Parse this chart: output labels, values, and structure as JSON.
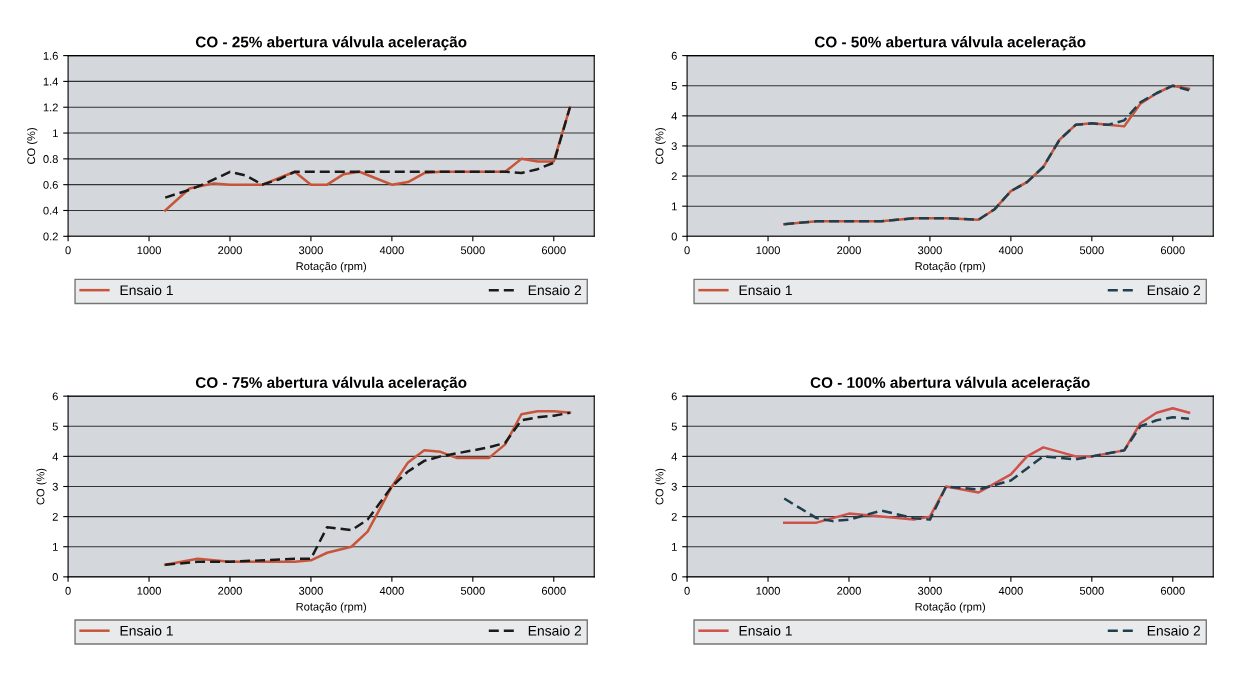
{
  "chart_data": [
    {
      "type": "line",
      "title": "CO - 25% abertura válvula aceleração",
      "xlabel": "Rotação (rpm)",
      "ylabel": "CO (%)",
      "xlim": [
        0,
        6500
      ],
      "xticks": [
        0,
        1000,
        2000,
        3000,
        4000,
        5000,
        6000
      ],
      "ylim": [
        0.2,
        1.6
      ],
      "yticks": [
        {
          "value": 0.2,
          "label": "0.2"
        },
        {
          "value": 0.4,
          "label": "0.4"
        },
        {
          "value": 0.6,
          "label": "0.6"
        },
        {
          "value": 0.8,
          "label": "0.8"
        },
        1,
        {
          "value": 1.2,
          "label": "1.2"
        },
        {
          "value": 1.4,
          "label": "1.4"
        },
        {
          "value": 1.6,
          "label": "1.6"
        }
      ],
      "grid": "y",
      "legend": "bottom",
      "marker": "none",
      "series": [
        {
          "name": "Ensaio 1",
          "color": "#c8553a",
          "line_style": "solid",
          "x": [
            1200,
            1500,
            1800,
            2000,
            2400,
            2800,
            3000,
            3200,
            3400,
            3600,
            3800,
            4000,
            4200,
            4400,
            4600,
            5400,
            5600,
            5800,
            6000,
            6200
          ],
          "values": [
            0.4,
            0.57,
            0.61,
            0.6,
            0.6,
            0.7,
            0.6,
            0.6,
            0.68,
            0.7,
            0.65,
            0.6,
            0.62,
            0.69,
            0.7,
            0.7,
            0.8,
            0.78,
            0.78,
            1.2
          ]
        },
        {
          "name": "Ensaio 2",
          "color": "#1a1a1a",
          "line_style": "dashed",
          "x": [
            1200,
            1500,
            1700,
            2000,
            2200,
            2400,
            2600,
            2800,
            3000,
            4400,
            5400,
            5600,
            5800,
            6000,
            6200
          ],
          "values": [
            0.5,
            0.56,
            0.61,
            0.7,
            0.67,
            0.6,
            0.64,
            0.7,
            0.7,
            0.7,
            0.7,
            0.69,
            0.72,
            0.77,
            1.2
          ]
        }
      ]
    },
    {
      "type": "line",
      "title": "CO - 50% abertura válvula aceleração",
      "xlabel": "Rotação (rpm)",
      "ylabel": "CO (%)",
      "xlim": [
        0,
        6500
      ],
      "xticks": [
        0,
        1000,
        2000,
        3000,
        4000,
        5000,
        6000
      ],
      "ylim": [
        0,
        6
      ],
      "yticks": [
        0,
        1,
        2,
        3,
        4,
        5,
        6
      ],
      "grid": "y",
      "legend": "bottom",
      "marker": "none",
      "series": [
        {
          "name": "Ensaio 1",
          "color": "#c8553a",
          "line_style": "solid",
          "x": [
            1200,
            1600,
            2000,
            2400,
            2800,
            3200,
            3600,
            3800,
            4000,
            4200,
            4400,
            4600,
            4800,
            5000,
            5200,
            5400,
            5600,
            5800,
            6000,
            6200
          ],
          "values": [
            0.4,
            0.5,
            0.5,
            0.5,
            0.6,
            0.6,
            0.55,
            0.9,
            1.5,
            1.8,
            2.3,
            3.2,
            3.7,
            3.75,
            3.7,
            3.65,
            4.4,
            4.75,
            5.0,
            4.9
          ]
        },
        {
          "name": "Ensaio 2",
          "color": "#1f3f4f",
          "line_style": "dashed",
          "x": [
            1200,
            1600,
            2000,
            2400,
            2800,
            3200,
            3600,
            3800,
            4000,
            4200,
            4400,
            4600,
            4800,
            5000,
            5200,
            5400,
            5600,
            5800,
            6000,
            6200
          ],
          "values": [
            0.4,
            0.5,
            0.5,
            0.5,
            0.6,
            0.6,
            0.55,
            0.9,
            1.5,
            1.8,
            2.3,
            3.2,
            3.7,
            3.75,
            3.7,
            3.85,
            4.45,
            4.75,
            5.0,
            4.85
          ]
        }
      ]
    },
    {
      "type": "line",
      "title": "CO - 75% abertura válvula aceleração",
      "xlabel": "Rotação (rpm)",
      "ylabel": "CO (%)",
      "xlim": [
        0,
        6500
      ],
      "xticks": [
        0,
        1000,
        2000,
        3000,
        4000,
        5000,
        6000
      ],
      "ylim": [
        0,
        6
      ],
      "yticks": [
        0,
        1,
        2,
        3,
        4,
        5,
        6
      ],
      "grid": "y",
      "legend": "bottom",
      "marker": "none",
      "series": [
        {
          "name": "Ensaio 1",
          "color": "#c8553a",
          "line_style": "solid",
          "x": [
            1200,
            1600,
            2000,
            2400,
            2800,
            3000,
            3200,
            3500,
            3700,
            4000,
            4200,
            4400,
            4600,
            4800,
            5200,
            5400,
            5600,
            5800,
            6000,
            6200
          ],
          "values": [
            0.4,
            0.6,
            0.5,
            0.5,
            0.5,
            0.55,
            0.8,
            1.0,
            1.5,
            3.0,
            3.8,
            4.2,
            4.15,
            3.95,
            3.95,
            4.4,
            5.4,
            5.5,
            5.5,
            5.45
          ]
        },
        {
          "name": "Ensaio 2",
          "color": "#1a1a1a",
          "line_style": "dashed",
          "x": [
            1200,
            1600,
            2000,
            2800,
            3000,
            3200,
            3500,
            3700,
            4000,
            4200,
            4400,
            4600,
            4800,
            5200,
            5400,
            5600,
            5800,
            6000,
            6200
          ],
          "values": [
            0.4,
            0.5,
            0.5,
            0.6,
            0.6,
            1.65,
            1.55,
            1.9,
            3.0,
            3.5,
            3.85,
            4.0,
            4.1,
            4.3,
            4.45,
            5.2,
            5.3,
            5.35,
            5.45
          ]
        }
      ]
    },
    {
      "type": "line",
      "title": "CO - 100% abertura válvula aceleração",
      "xlabel": "Rotação (rpm)",
      "ylabel": "CO (%)",
      "xlim": [
        0,
        6500
      ],
      "xticks": [
        0,
        1000,
        2000,
        3000,
        4000,
        5000,
        6000
      ],
      "ylim": [
        0,
        6
      ],
      "yticks": [
        0,
        1,
        2,
        3,
        4,
        5,
        6
      ],
      "grid": "y",
      "legend": "bottom",
      "marker": "none",
      "series": [
        {
          "name": "Ensaio 1",
          "color": "#d0504a",
          "line_style": "solid",
          "x": [
            1200,
            1600,
            2000,
            2400,
            2800,
            3000,
            3200,
            3600,
            4000,
            4200,
            4400,
            4800,
            5000,
            5400,
            5600,
            5800,
            6000,
            6200
          ],
          "values": [
            1.8,
            1.8,
            2.1,
            2.0,
            1.9,
            2.0,
            3.0,
            2.8,
            3.4,
            4.0,
            4.3,
            4.0,
            4.0,
            4.2,
            5.1,
            5.45,
            5.6,
            5.45
          ]
        },
        {
          "name": "Ensaio 2",
          "color": "#1f3f4f",
          "line_style": "dashed",
          "x": [
            1200,
            1600,
            1800,
            2000,
            2400,
            2800,
            3000,
            3200,
            3600,
            4000,
            4200,
            4400,
            4800,
            5000,
            5400,
            5600,
            5800,
            6000,
            6200
          ],
          "values": [
            2.6,
            1.95,
            1.85,
            1.9,
            2.2,
            1.95,
            1.9,
            3.0,
            2.9,
            3.2,
            3.6,
            4.0,
            3.9,
            4.0,
            4.2,
            5.0,
            5.2,
            5.3,
            5.25
          ]
        }
      ]
    }
  ]
}
